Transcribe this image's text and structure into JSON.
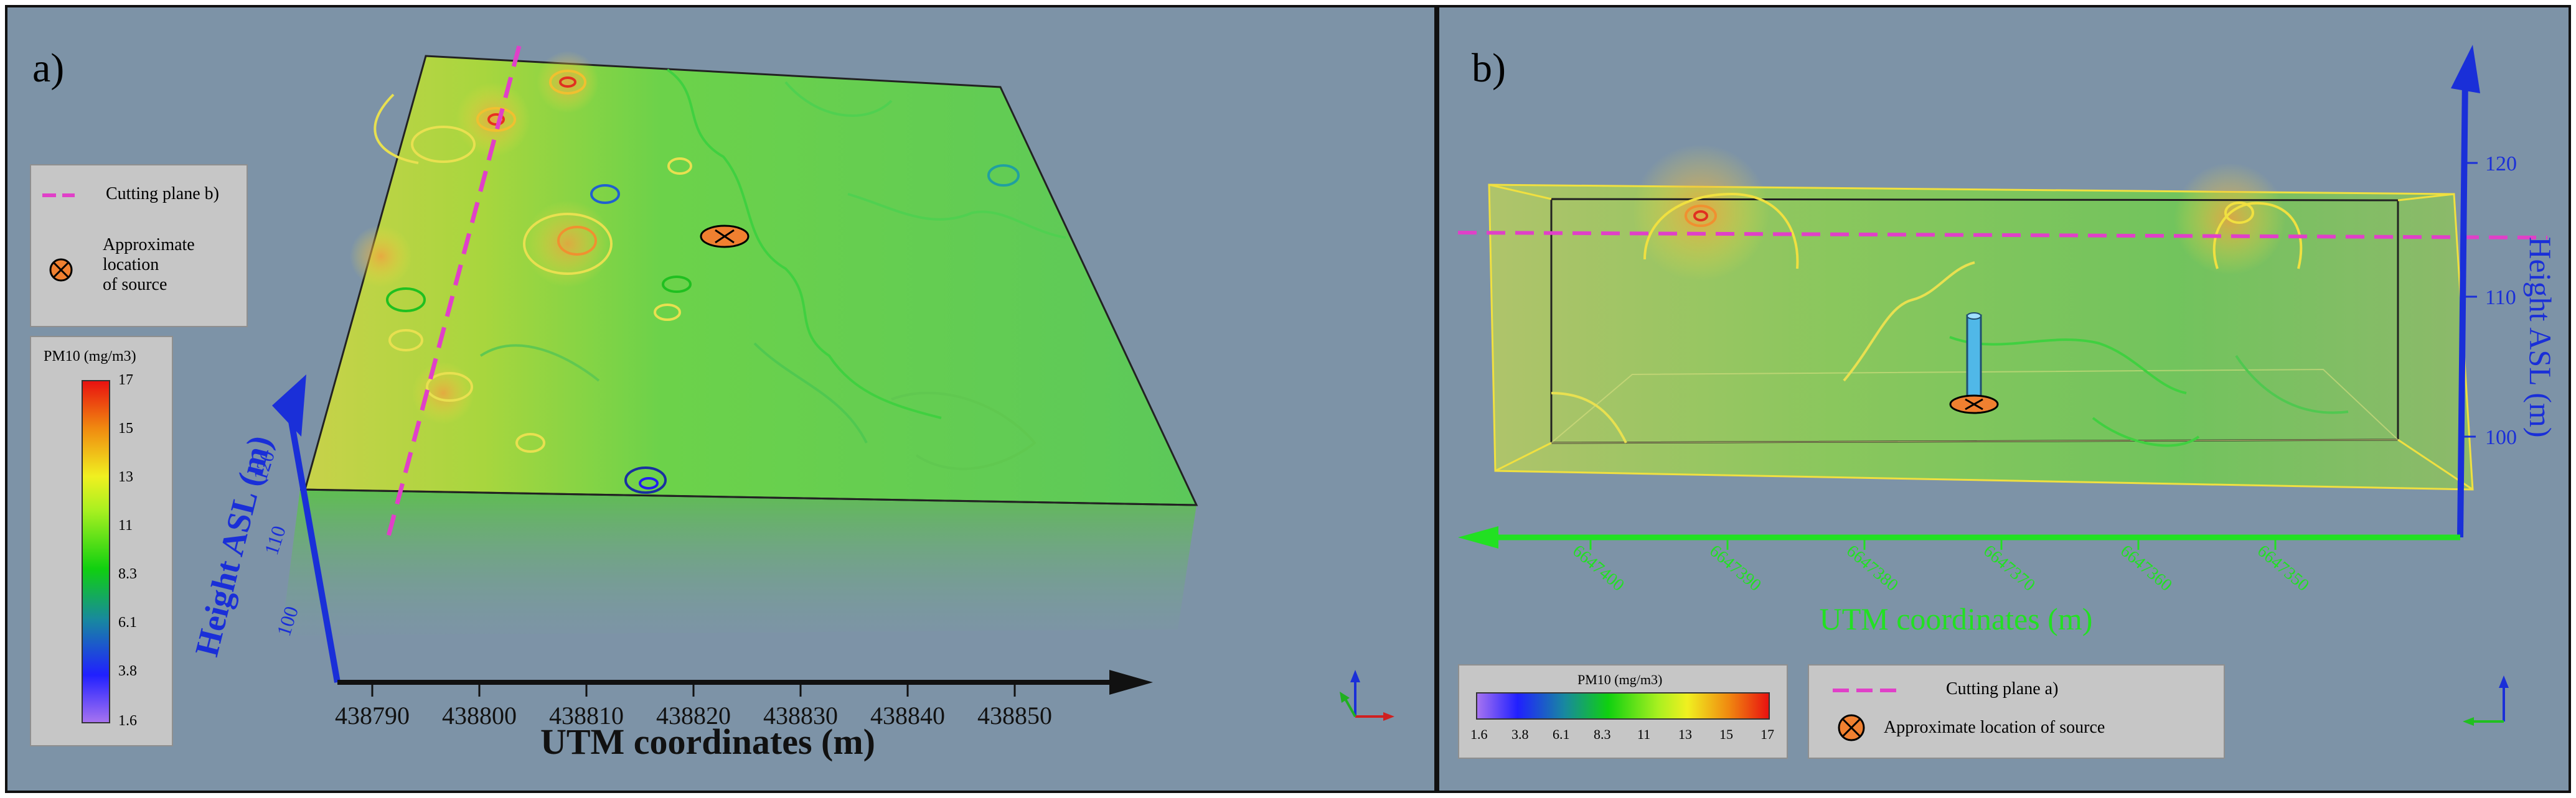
{
  "panel_a": {
    "label": "a)",
    "x_axis_title": "UTM coordinates (m)",
    "x_ticks": [
      "438790",
      "438800",
      "438810",
      "438820",
      "438830",
      "438840",
      "438850"
    ],
    "z_axis_title": "Height ASL (m)",
    "z_ticks": [
      "120",
      "110",
      "100"
    ],
    "legend": {
      "cutting_plane_label": "Cutting plane b)",
      "source_label_lines": [
        "Approximate",
        "location",
        "of source"
      ]
    },
    "colorbar": {
      "title": "PM10 (mg/m3)",
      "ticks": [
        "17",
        "15",
        "13",
        "11",
        "8.3",
        "6.1",
        "3.8",
        "1.6"
      ]
    }
  },
  "panel_b": {
    "label": "b)",
    "x_axis_title": "UTM coordinates (m)",
    "x_ticks": [
      "6647400",
      "6647390",
      "6647380",
      "6647370",
      "6647360",
      "6647350"
    ],
    "z_axis_title": "Height ASL (m)",
    "z_ticks": [
      "120",
      "110",
      "100"
    ],
    "legend": {
      "cutting_plane_label": "Cutting plane a)",
      "source_label": "Approximate location of source"
    },
    "colorbar": {
      "title": "PM10 (mg/m3)",
      "ticks": [
        "1.6",
        "3.8",
        "6.1",
        "8.3",
        "11",
        "13",
        "15",
        "17"
      ]
    }
  },
  "colors": {
    "background": "#7d93a7",
    "cutting_plane": "#e040c8",
    "axis_blue": "#1a2fd8",
    "axis_green": "#22e022",
    "source_marker": "#f08030"
  }
}
